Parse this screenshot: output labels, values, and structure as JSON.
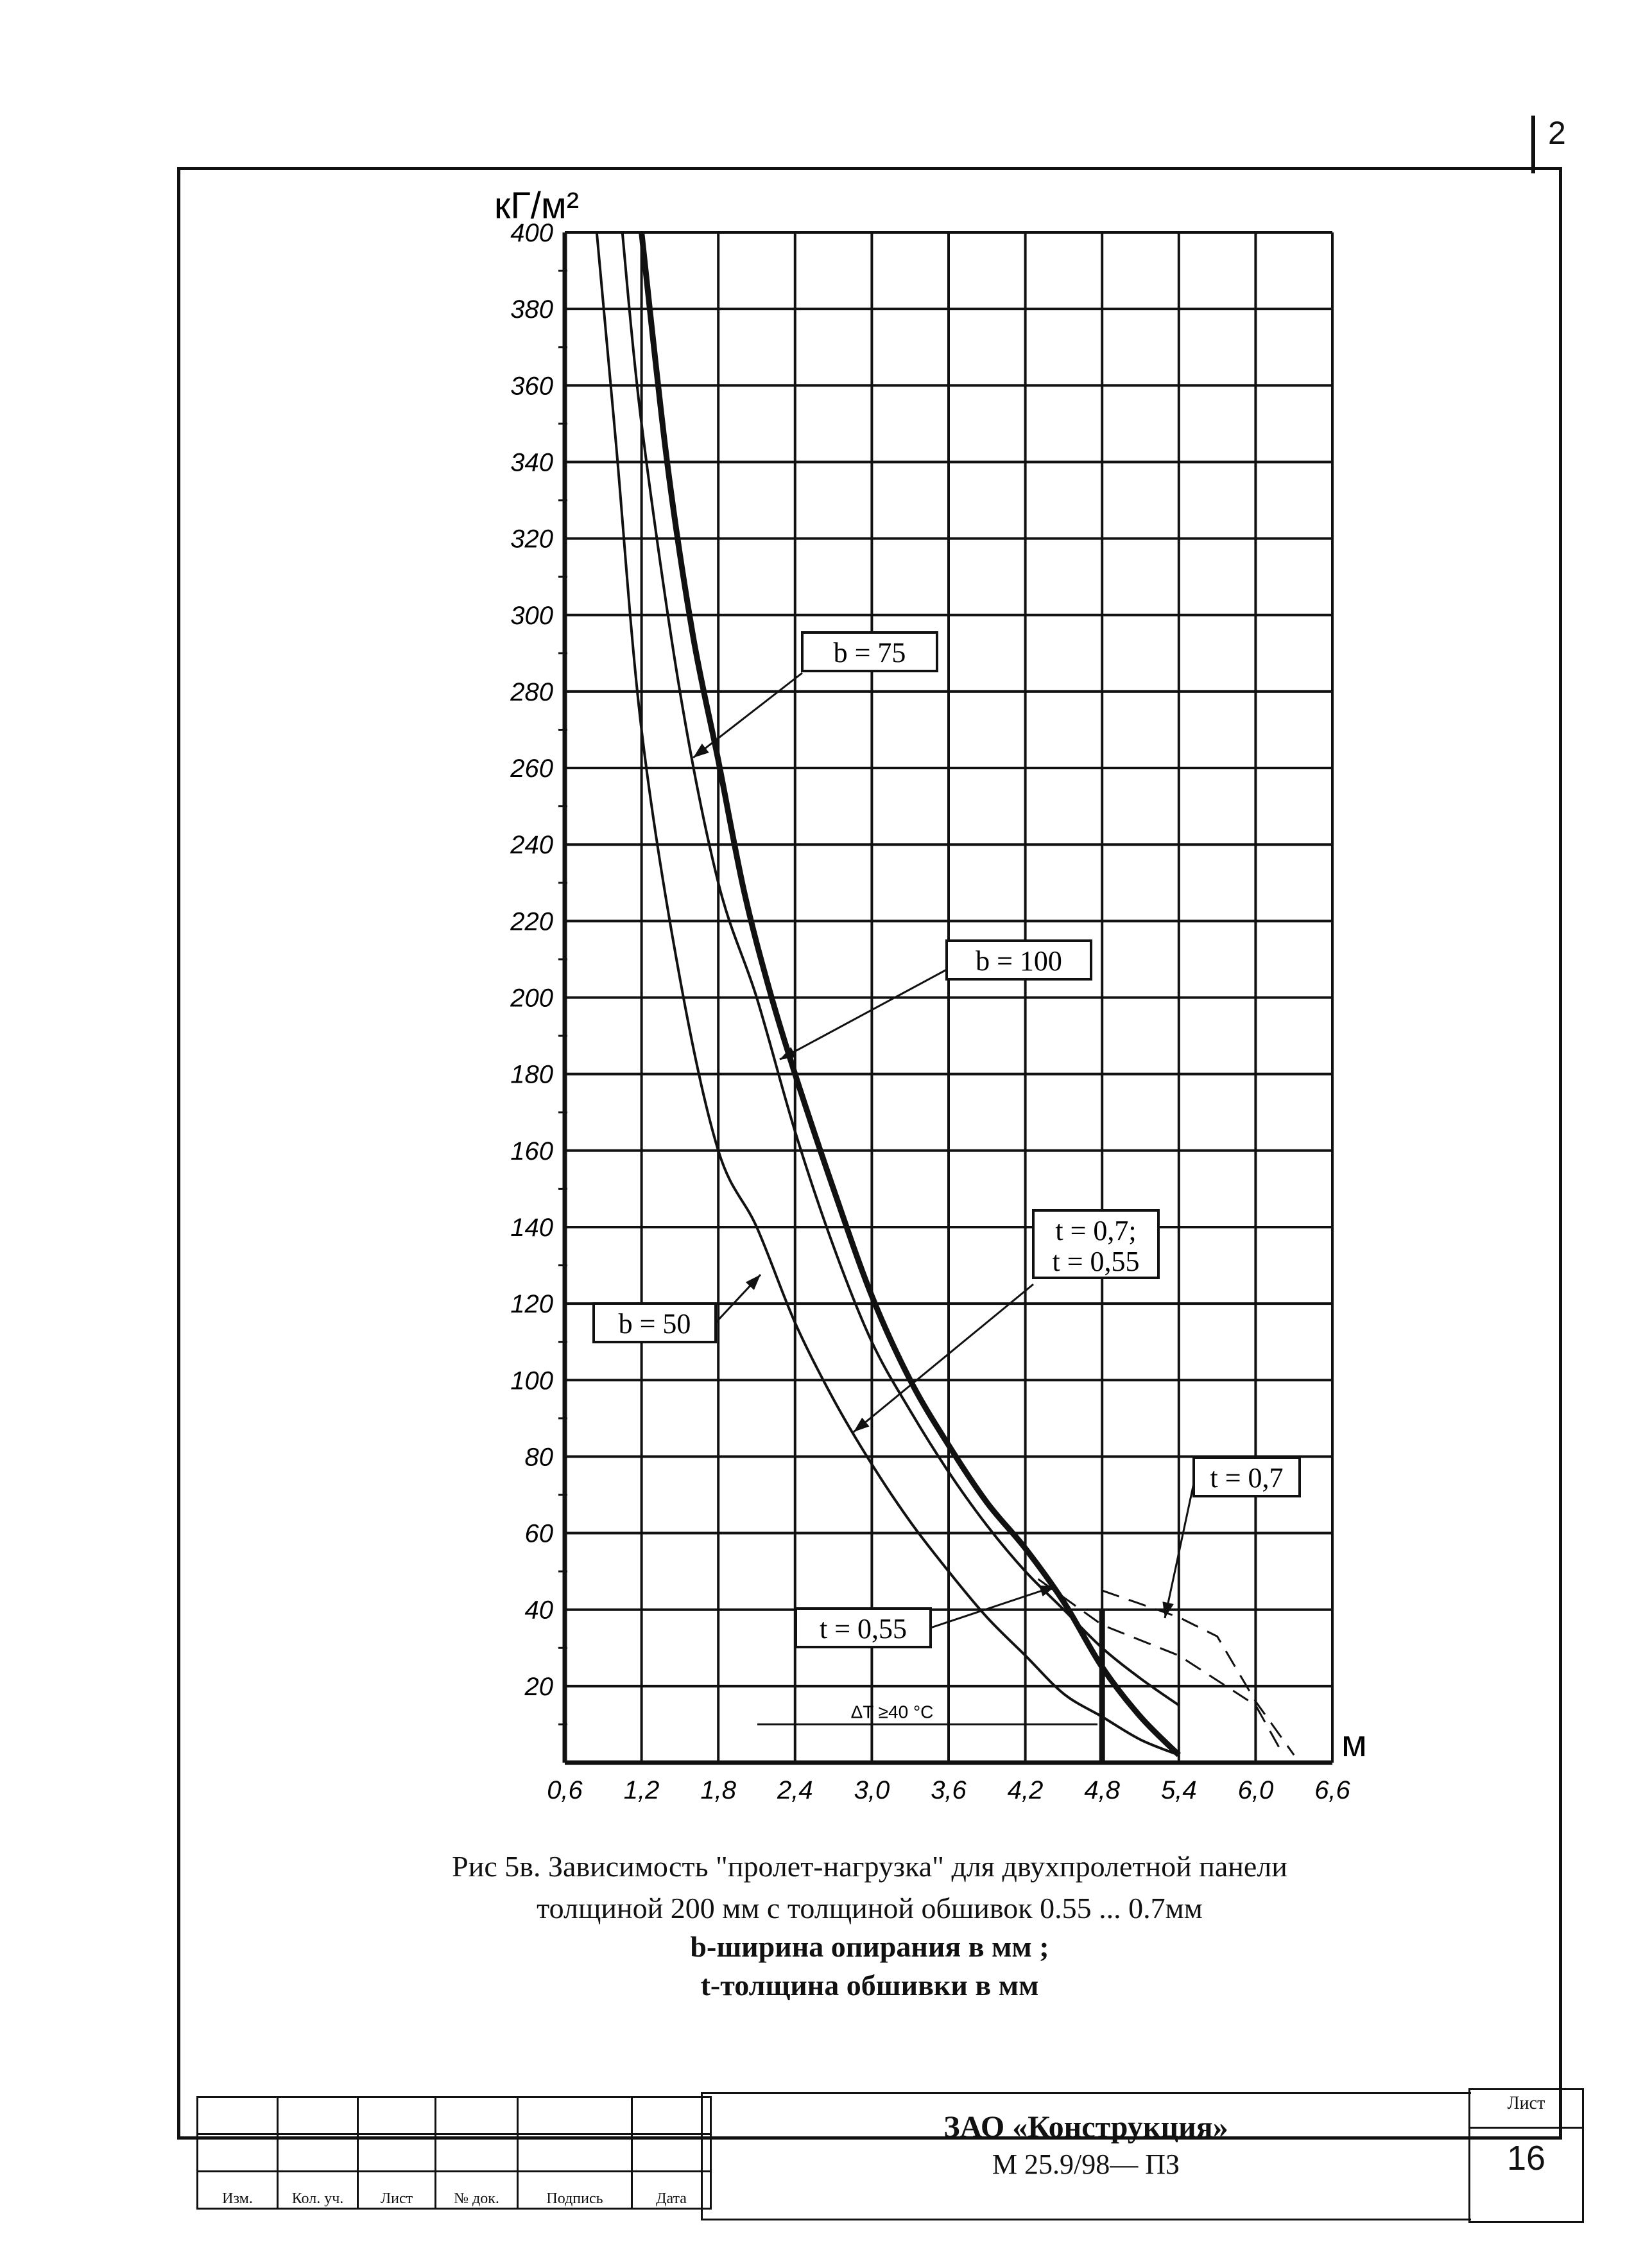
{
  "page": {
    "sheet_corner_number": "2"
  },
  "chart_data": {
    "type": "line",
    "title": "",
    "xlabel": "м",
    "ylabel": "кГ/м²",
    "xlim": [
      0.6,
      6.6
    ],
    "ylim": [
      0,
      400
    ],
    "x_ticks": [
      "0,6",
      "1,2",
      "1,8",
      "2,4",
      "3,0",
      "3,6",
      "4,2",
      "4,8",
      "5,4",
      "6,0",
      "6,6"
    ],
    "x_tick_values": [
      0.6,
      1.2,
      1.8,
      2.4,
      3.0,
      3.6,
      4.2,
      4.8,
      5.4,
      6.0,
      6.6
    ],
    "y_ticks": [
      "20",
      "40",
      "60",
      "80",
      "100",
      "120",
      "140",
      "160",
      "180",
      "200",
      "220",
      "240",
      "260",
      "280",
      "300",
      "320",
      "340",
      "360",
      "380",
      "400"
    ],
    "y_tick_values": [
      20,
      40,
      60,
      80,
      100,
      120,
      140,
      160,
      180,
      200,
      220,
      240,
      260,
      280,
      300,
      320,
      340,
      360,
      380,
      400
    ],
    "grid": true,
    "series": [
      {
        "name": "b = 50",
        "style": "thin",
        "x": [
          0.85,
          1.0,
          1.2,
          1.5,
          1.8,
          2.1,
          2.4,
          2.7,
          3.0,
          3.3,
          3.6,
          3.9,
          4.2,
          4.5,
          4.8,
          5.1,
          5.4
        ],
        "y": [
          400,
          345,
          270,
          205,
          160,
          140,
          115,
          95,
          78,
          63,
          50,
          38,
          28,
          18,
          12,
          6,
          2
        ]
      },
      {
        "name": "b = 75",
        "style": "thin",
        "x": [
          1.05,
          1.2,
          1.5,
          1.8,
          2.1,
          2.4,
          2.7,
          3.0,
          3.3,
          3.6,
          3.9,
          4.2,
          4.5,
          4.8,
          5.1,
          5.4
        ],
        "y": [
          400,
          350,
          280,
          230,
          200,
          165,
          135,
          110,
          92,
          76,
          62,
          50,
          40,
          30,
          22,
          15
        ]
      },
      {
        "name": "b = 100",
        "style": "thick",
        "x": [
          1.2,
          1.4,
          1.6,
          1.8,
          2.0,
          2.2,
          2.4,
          2.7,
          3.0,
          3.3,
          3.6,
          3.9,
          4.2,
          4.5,
          4.8,
          5.1,
          5.4
        ],
        "y": [
          400,
          340,
          295,
          262,
          228,
          202,
          180,
          150,
          122,
          100,
          83,
          68,
          56,
          42,
          25,
          12,
          2
        ]
      }
    ],
    "dashed_lines": [
      {
        "name": "t = 0,55",
        "x": [
          4.3,
          4.8,
          5.4,
          6.0,
          6.2
        ],
        "y": [
          48,
          36,
          28,
          15,
          3
        ]
      },
      {
        "name": "t = 0,7",
        "x": [
          4.8,
          5.4,
          5.7,
          6.0,
          6.3
        ],
        "y": [
          45,
          38,
          33,
          16,
          2
        ]
      }
    ],
    "thick_vertical": {
      "x": 4.8,
      "y_top": 40
    },
    "labels": {
      "b75": "b = 75",
      "b100": "b = 100",
      "b50": "b = 50",
      "t07_055_line1": "t = 0,7;",
      "t07_055_line2": "t = 0,55",
      "t07": "t = 0,7",
      "t055": "t = 0,55",
      "delta_t": "ΔT ≥40 °C"
    }
  },
  "caption": {
    "line1": "Рис 5в. Зависимость \"пролет-нагрузка\" для двухпролетной панели",
    "line2": "толщиной 200 мм с толщиной обшивок 0.55 ... 0.7мм",
    "line3": "b-ширина опирания в мм ;",
    "line4": "t-толщина обшивки в мм"
  },
  "stamp": {
    "columns": [
      "Изм.",
      "Кол. уч.",
      "Лист",
      "№ док.",
      "Подпись",
      "Дата"
    ],
    "organization": "ЗАО «Конструкция»",
    "document_code": "М 25.9/98— ПЗ",
    "sheet_label": "Лист",
    "sheet_number": "16"
  }
}
